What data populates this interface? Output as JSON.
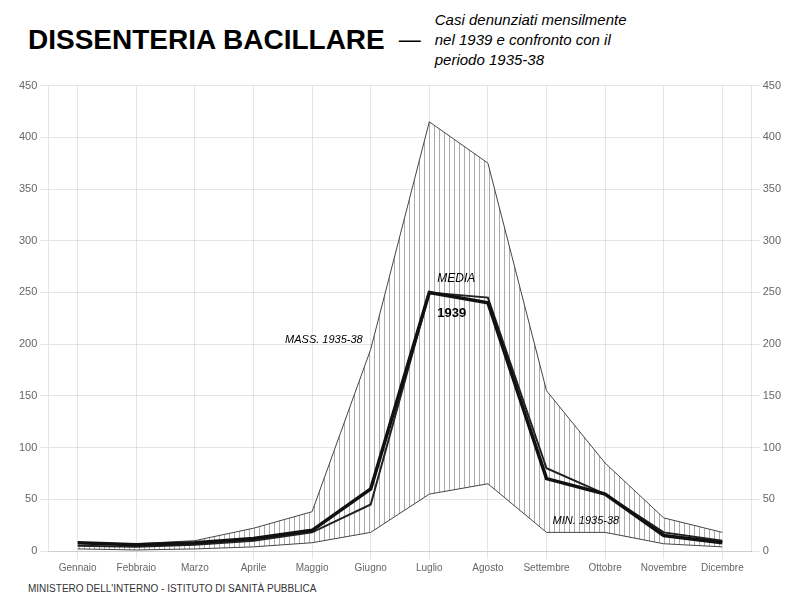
{
  "chart_data": {
    "type": "line",
    "title": "DISSENTERIA BACILLARE",
    "separator": "—",
    "subtitle": "Casi denunziati mensilmente\nnel 1939 e confronto con il\nperiodo 1935-38",
    "footer": "MINISTERO DELL'INTERNO - ISTITUTO DI SANITÀ PUBBLICA",
    "categories": [
      "Gennaio",
      "Febbraio",
      "Marzo",
      "Aprile",
      "Maggio",
      "Giugno",
      "Luglio",
      "Agosto",
      "Settembre",
      "Ottobre",
      "Novembre",
      "Dicembre"
    ],
    "series": [
      {
        "name": "MASS. 1935-38",
        "color": "#444444",
        "values": [
          8,
          7,
          10,
          22,
          38,
          195,
          415,
          375,
          155,
          85,
          32,
          18
        ]
      },
      {
        "name": "MIN. 1935-38",
        "color": "#444444",
        "values": [
          2,
          1,
          2,
          4,
          8,
          18,
          55,
          65,
          18,
          18,
          7,
          4
        ]
      },
      {
        "name": "MEDIA",
        "color": "#222222",
        "values": [
          5,
          4,
          6,
          10,
          18,
          45,
          250,
          245,
          80,
          55,
          18,
          10
        ]
      },
      {
        "name": "1939",
        "color": "#111111",
        "values": [
          8,
          6,
          8,
          12,
          20,
          60,
          250,
          240,
          70,
          55,
          15,
          8
        ]
      }
    ],
    "fill_between": [
      "MASS. 1935-38",
      "MIN. 1935-38"
    ],
    "ylim": [
      0,
      450
    ],
    "yticks": [
      0,
      50,
      100,
      150,
      200,
      250,
      300,
      350,
      400,
      450
    ],
    "y2lim": [
      0,
      450
    ],
    "y2ticks": [
      0,
      50,
      100,
      150,
      200,
      250,
      300,
      350,
      400,
      450
    ],
    "grid": true
  }
}
